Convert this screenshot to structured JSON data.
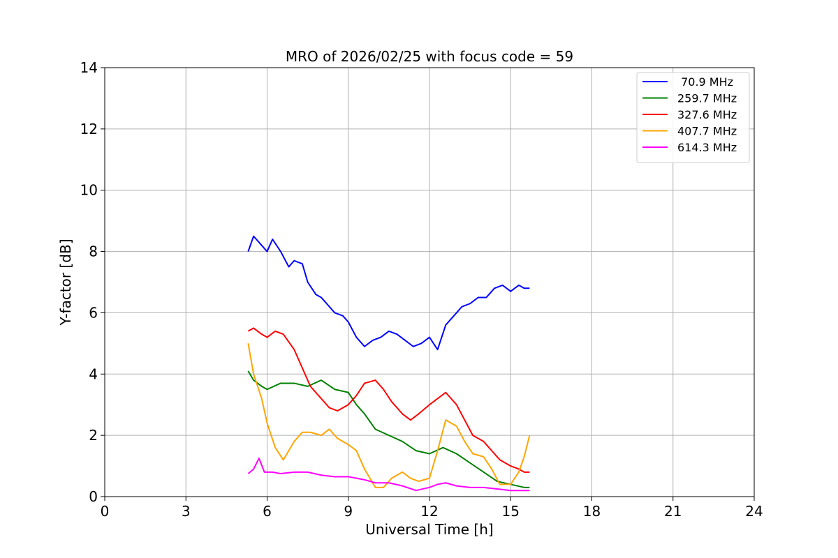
{
  "chart_data": {
    "type": "line",
    "title": "MRO of 2026/02/25 with focus code = 59",
    "xlabel": "Universal Time [h]",
    "ylabel": "Y-factor [dB]",
    "xlim": [
      0,
      24
    ],
    "ylim": [
      0,
      14
    ],
    "xticks": [
      0,
      3,
      6,
      9,
      12,
      15,
      18,
      21,
      24
    ],
    "yticks": [
      0,
      2,
      4,
      6,
      8,
      10,
      12,
      14
    ],
    "grid": true,
    "legend_position": "top-right",
    "series": [
      {
        "name": " 70.9 MHz",
        "color": "#0000ff",
        "x": [
          5.3,
          5.5,
          5.8,
          6.0,
          6.2,
          6.5,
          6.8,
          7.0,
          7.3,
          7.5,
          7.8,
          8.0,
          8.3,
          8.5,
          8.8,
          9.0,
          9.3,
          9.6,
          9.9,
          10.2,
          10.5,
          10.8,
          11.1,
          11.4,
          11.7,
          12.0,
          12.3,
          12.6,
          12.9,
          13.2,
          13.5,
          13.8,
          14.1,
          14.4,
          14.7,
          15.0,
          15.3,
          15.5,
          15.7
        ],
        "y": [
          8.0,
          8.5,
          8.2,
          8.0,
          8.4,
          8.0,
          7.5,
          7.7,
          7.6,
          7.0,
          6.6,
          6.5,
          6.2,
          6.0,
          5.9,
          5.7,
          5.2,
          4.9,
          5.1,
          5.2,
          5.4,
          5.3,
          5.1,
          4.9,
          5.0,
          5.2,
          4.8,
          5.6,
          5.9,
          6.2,
          6.3,
          6.5,
          6.5,
          6.8,
          6.9,
          6.7,
          6.9,
          6.8,
          6.8
        ]
      },
      {
        "name": "259.7 MHz",
        "color": "#008000",
        "x": [
          5.3,
          5.5,
          5.8,
          6.0,
          6.5,
          7.0,
          7.5,
          8.0,
          8.5,
          9.0,
          9.3,
          9.6,
          10.0,
          10.5,
          11.0,
          11.5,
          12.0,
          12.5,
          13.0,
          13.5,
          14.0,
          14.5,
          15.0,
          15.5,
          15.7
        ],
        "y": [
          4.1,
          3.8,
          3.6,
          3.5,
          3.7,
          3.7,
          3.6,
          3.8,
          3.5,
          3.4,
          3.0,
          2.7,
          2.2,
          2.0,
          1.8,
          1.5,
          1.4,
          1.6,
          1.4,
          1.1,
          0.8,
          0.5,
          0.4,
          0.3,
          0.3
        ]
      },
      {
        "name": "327.6 MHz",
        "color": "#ff0000",
        "x": [
          5.3,
          5.5,
          5.8,
          6.0,
          6.3,
          6.6,
          7.0,
          7.3,
          7.6,
          8.0,
          8.3,
          8.6,
          9.0,
          9.3,
          9.6,
          10.0,
          10.3,
          10.6,
          11.0,
          11.3,
          11.6,
          12.0,
          12.3,
          12.6,
          13.0,
          13.3,
          13.6,
          14.0,
          14.3,
          14.6,
          15.0,
          15.3,
          15.5,
          15.7
        ],
        "y": [
          5.4,
          5.5,
          5.3,
          5.2,
          5.4,
          5.3,
          4.8,
          4.2,
          3.6,
          3.2,
          2.9,
          2.8,
          3.0,
          3.3,
          3.7,
          3.8,
          3.5,
          3.1,
          2.7,
          2.5,
          2.7,
          3.0,
          3.2,
          3.4,
          3.0,
          2.5,
          2.0,
          1.8,
          1.5,
          1.2,
          1.0,
          0.9,
          0.8,
          0.8
        ]
      },
      {
        "name": "407.7 MHz",
        "color": "#ffa500",
        "x": [
          5.3,
          5.5,
          5.8,
          6.0,
          6.3,
          6.6,
          7.0,
          7.3,
          7.6,
          8.0,
          8.3,
          8.6,
          9.0,
          9.3,
          9.6,
          10.0,
          10.3,
          10.6,
          11.0,
          11.3,
          11.6,
          12.0,
          12.3,
          12.6,
          13.0,
          13.3,
          13.6,
          14.0,
          14.3,
          14.6,
          15.0,
          15.3,
          15.5,
          15.7
        ],
        "y": [
          5.0,
          4.0,
          3.2,
          2.4,
          1.6,
          1.2,
          1.8,
          2.1,
          2.1,
          2.0,
          2.2,
          1.9,
          1.7,
          1.5,
          0.9,
          0.3,
          0.3,
          0.6,
          0.8,
          0.6,
          0.5,
          0.6,
          1.5,
          2.5,
          2.3,
          1.8,
          1.4,
          1.3,
          0.9,
          0.4,
          0.4,
          0.8,
          1.3,
          2.0
        ]
      },
      {
        "name": "614.3 MHz",
        "color": "#ff00ff",
        "x": [
          5.3,
          5.5,
          5.7,
          5.9,
          6.2,
          6.5,
          7.0,
          7.5,
          8.0,
          8.5,
          9.0,
          9.3,
          9.6,
          10.0,
          10.5,
          11.0,
          11.5,
          12.0,
          12.3,
          12.6,
          13.0,
          13.5,
          14.0,
          14.5,
          15.0,
          15.3,
          15.5,
          15.7
        ],
        "y": [
          0.75,
          0.9,
          1.25,
          0.8,
          0.8,
          0.75,
          0.8,
          0.8,
          0.7,
          0.65,
          0.65,
          0.6,
          0.55,
          0.45,
          0.45,
          0.35,
          0.2,
          0.3,
          0.4,
          0.45,
          0.35,
          0.3,
          0.3,
          0.25,
          0.2,
          0.2,
          0.2,
          0.2
        ]
      }
    ]
  }
}
